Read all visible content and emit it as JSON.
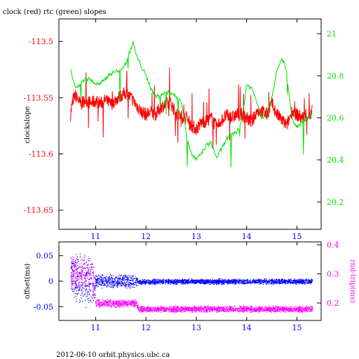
{
  "title": "clock (red) rtc (green) slopes",
  "footer": "2012-06-10 orbit.physics.ubc.ca",
  "colors": {
    "clock": "#ff0000",
    "rtc": "#00e000",
    "offset": "#0000ff",
    "roundtrip": "#ff00ff",
    "axis": "#000000"
  },
  "chart_data": [
    {
      "type": "line",
      "xlim": [
        10.27,
        15.48
      ],
      "x_ticks": [
        "11",
        "12",
        "13",
        "14",
        "15"
      ],
      "ylabel": "clockslope",
      "ylim": [
        -113.667,
        -113.48
      ],
      "y_ticks": [
        "-113.5",
        "-113.55",
        "-113.6",
        "-113.65"
      ],
      "ylabel_right": "",
      "ylim_right": [
        20.07,
        21.07
      ],
      "y_ticks_right": [
        "21",
        "20.8",
        "20.6",
        "20.4",
        "20.2"
      ],
      "grid": false,
      "series": [
        {
          "name": "clock",
          "axis": "left",
          "x": [
            10.5,
            10.55,
            10.6,
            10.7,
            10.8,
            10.9,
            11.0,
            11.1,
            11.2,
            11.3,
            11.4,
            11.5,
            11.6,
            11.7,
            11.8,
            11.9,
            12.0,
            12.1,
            12.2,
            12.3,
            12.4,
            12.5,
            12.6,
            12.7,
            12.8,
            12.9,
            13.0,
            13.1,
            13.2,
            13.3,
            13.4,
            13.5,
            13.6,
            13.7,
            13.8,
            13.9,
            14.0,
            14.1,
            14.2,
            14.3,
            14.4,
            14.5,
            14.6,
            14.7,
            14.8,
            14.9,
            15.0,
            15.1,
            15.2,
            15.3
          ],
          "y": [
            -113.565,
            -113.552,
            -113.548,
            -113.556,
            -113.552,
            -113.555,
            -113.553,
            -113.555,
            -113.552,
            -113.556,
            -113.552,
            -113.548,
            -113.546,
            -113.55,
            -113.556,
            -113.562,
            -113.565,
            -113.563,
            -113.565,
            -113.558,
            -113.556,
            -113.555,
            -113.565,
            -113.567,
            -113.568,
            -113.575,
            -113.578,
            -113.572,
            -113.571,
            -113.568,
            -113.576,
            -113.57,
            -113.566,
            -113.568,
            -113.565,
            -113.565,
            -113.568,
            -113.572,
            -113.562,
            -113.562,
            -113.565,
            -113.555,
            -113.565,
            -113.57,
            -113.575,
            -113.562,
            -113.565,
            -113.568,
            -113.566,
            -113.565
          ]
        },
        {
          "name": "rtc",
          "axis": "right",
          "x": [
            10.5,
            10.55,
            10.6,
            10.7,
            10.8,
            10.9,
            11.0,
            11.1,
            11.2,
            11.3,
            11.4,
            11.5,
            11.6,
            11.7,
            11.75,
            11.8,
            11.9,
            12.0,
            12.1,
            12.2,
            12.3,
            12.4,
            12.5,
            12.6,
            12.7,
            12.8,
            12.9,
            13.0,
            13.1,
            13.2,
            13.3,
            13.4,
            13.5,
            13.6,
            13.7,
            13.8,
            13.9,
            14.0,
            14.1,
            14.2,
            14.3,
            14.4,
            14.5,
            14.6,
            14.7,
            14.75,
            14.8,
            14.9,
            15.0,
            15.1,
            15.2,
            15.3
          ],
          "y": [
            20.83,
            20.78,
            20.74,
            20.76,
            20.79,
            20.78,
            20.76,
            20.76,
            20.79,
            20.81,
            20.82,
            20.83,
            20.86,
            20.93,
            20.96,
            20.9,
            20.85,
            20.8,
            20.74,
            20.7,
            20.71,
            20.72,
            20.72,
            20.7,
            20.68,
            20.53,
            20.43,
            20.4,
            20.43,
            20.47,
            20.48,
            20.41,
            20.45,
            20.5,
            20.52,
            20.53,
            20.58,
            20.76,
            20.74,
            20.68,
            20.6,
            20.62,
            20.7,
            20.82,
            20.88,
            20.86,
            20.8,
            20.6,
            20.55,
            20.58,
            20.6,
            20.62
          ]
        }
      ]
    },
    {
      "type": "scatter",
      "xlim": [
        10.27,
        15.48
      ],
      "x_ticks": [
        "11",
        "12",
        "13",
        "14",
        "15"
      ],
      "ylabel": "offset(ms)",
      "ylim": [
        -0.077,
        0.077
      ],
      "y_ticks": [
        "0.05",
        "0",
        "-0.05"
      ],
      "ylabel_right": "rnd-trip(ms)",
      "ylim_right": [
        0.14,
        0.41
      ],
      "y_ticks_right": [
        "0.4",
        "0.3",
        "0.2"
      ],
      "grid": false,
      "series": [
        {
          "name": "offset",
          "axis": "left",
          "x": [
            10.5,
            10.75,
            10.95,
            11.0,
            11.4,
            11.8,
            11.85,
            12.5,
            13.0,
            13.5,
            14.0,
            14.5,
            15.0,
            15.3
          ],
          "y": [
            0.01,
            0.0,
            -0.01,
            0.0,
            0.0,
            0.0,
            -0.001,
            0.0,
            0.0,
            0.0,
            0.0,
            0.0,
            0.0,
            0.0
          ],
          "spread": [
            0.05,
            0.06,
            0.05,
            0.015,
            0.015,
            0.015,
            0.006,
            0.006,
            0.006,
            0.006,
            0.006,
            0.006,
            0.006,
            0.006
          ]
        },
        {
          "name": "rnd-trip",
          "axis": "right",
          "x": [
            10.5,
            10.75,
            10.95,
            11.0,
            11.4,
            11.8,
            11.85,
            12.5,
            13.0,
            13.5,
            14.0,
            14.5,
            15.0,
            15.3
          ],
          "y": [
            0.3,
            0.3,
            0.29,
            0.2,
            0.2,
            0.2,
            0.18,
            0.18,
            0.18,
            0.18,
            0.18,
            0.18,
            0.18,
            0.18
          ],
          "spread": [
            0.07,
            0.07,
            0.07,
            0.015,
            0.015,
            0.015,
            0.012,
            0.012,
            0.012,
            0.012,
            0.012,
            0.012,
            0.012,
            0.012
          ]
        }
      ]
    }
  ]
}
